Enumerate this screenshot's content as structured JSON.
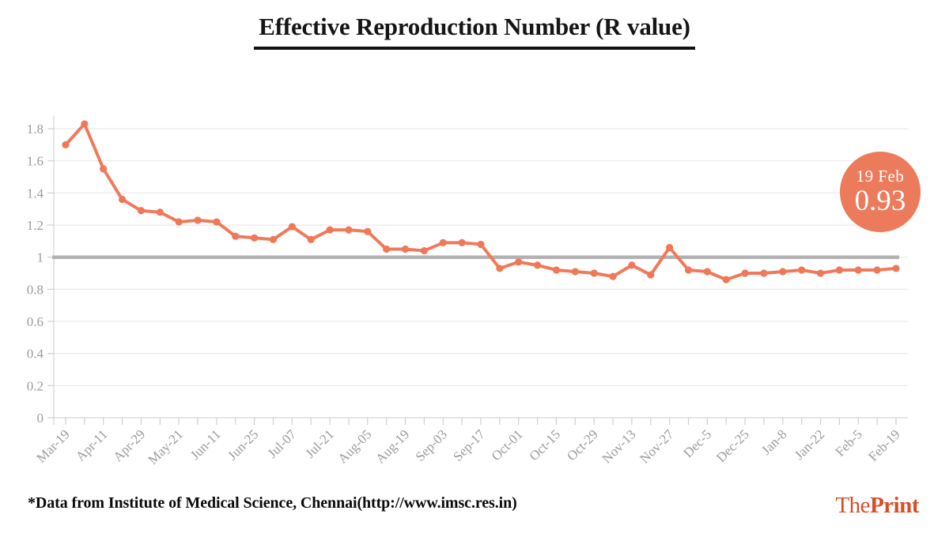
{
  "title": "Effective Reproduction Number (R value)",
  "badge": {
    "date": "19 Feb",
    "value": "0.93"
  },
  "footer": {
    "source": "*Data from Institute of Medical Science, Chennai(http://www.imsc.res.in)",
    "brand": {
      "the": "The",
      "print": "Print"
    }
  },
  "colors": {
    "line": "#f0795a",
    "marker": "#ef7858",
    "badge_bg": "#ec7b5c",
    "baseline": "#b2b2b2",
    "grid": "#ebebeb",
    "spine": "#d8d8d8",
    "tick": "#cfcfcf",
    "tick_label": "#9c9c9c",
    "brand": "#d54e28",
    "title_text": "#151515"
  },
  "chart_data": {
    "type": "line",
    "title": "Effective Reproduction Number (R value)",
    "x_labels": [
      "Mar-19",
      "Apr-11",
      "Apr-29",
      "May-21",
      "Jun-11",
      "Jun-25",
      "Jul-07",
      "Jul-21",
      "Aug-05",
      "Aug-19",
      "Sep-03",
      "Sep-17",
      "Oct-01",
      "Oct-15",
      "Oct-29",
      "Nov-13",
      "Nov-27",
      "Dec-5",
      "Dec-25",
      "Jan-8",
      "Jan-22",
      "Feb-5",
      "Feb-19"
    ],
    "label_every": 2,
    "values": [
      1.7,
      1.83,
      1.55,
      1.36,
      1.29,
      1.28,
      1.22,
      1.23,
      1.22,
      1.13,
      1.12,
      1.11,
      1.19,
      1.11,
      1.17,
      1.17,
      1.16,
      1.05,
      1.05,
      1.04,
      1.09,
      1.09,
      1.08,
      0.93,
      0.97,
      0.95,
      0.92,
      0.91,
      0.9,
      0.88,
      0.95,
      0.89,
      1.06,
      0.92,
      0.91,
      0.86,
      0.9,
      0.9,
      0.91,
      0.92,
      0.9,
      0.92,
      0.92,
      0.92,
      0.93
    ],
    "ylim": [
      0,
      1.9
    ],
    "yticks": [
      0,
      0.2,
      0.4,
      0.6,
      0.8,
      1,
      1.2,
      1.4,
      1.6,
      1.8
    ],
    "baseline": 1,
    "grid": "horizontal-only",
    "legend": "none",
    "annotation": {
      "label": "19 Feb",
      "value": 0.93,
      "position": "right"
    },
    "xlabel": "",
    "ylabel": ""
  }
}
